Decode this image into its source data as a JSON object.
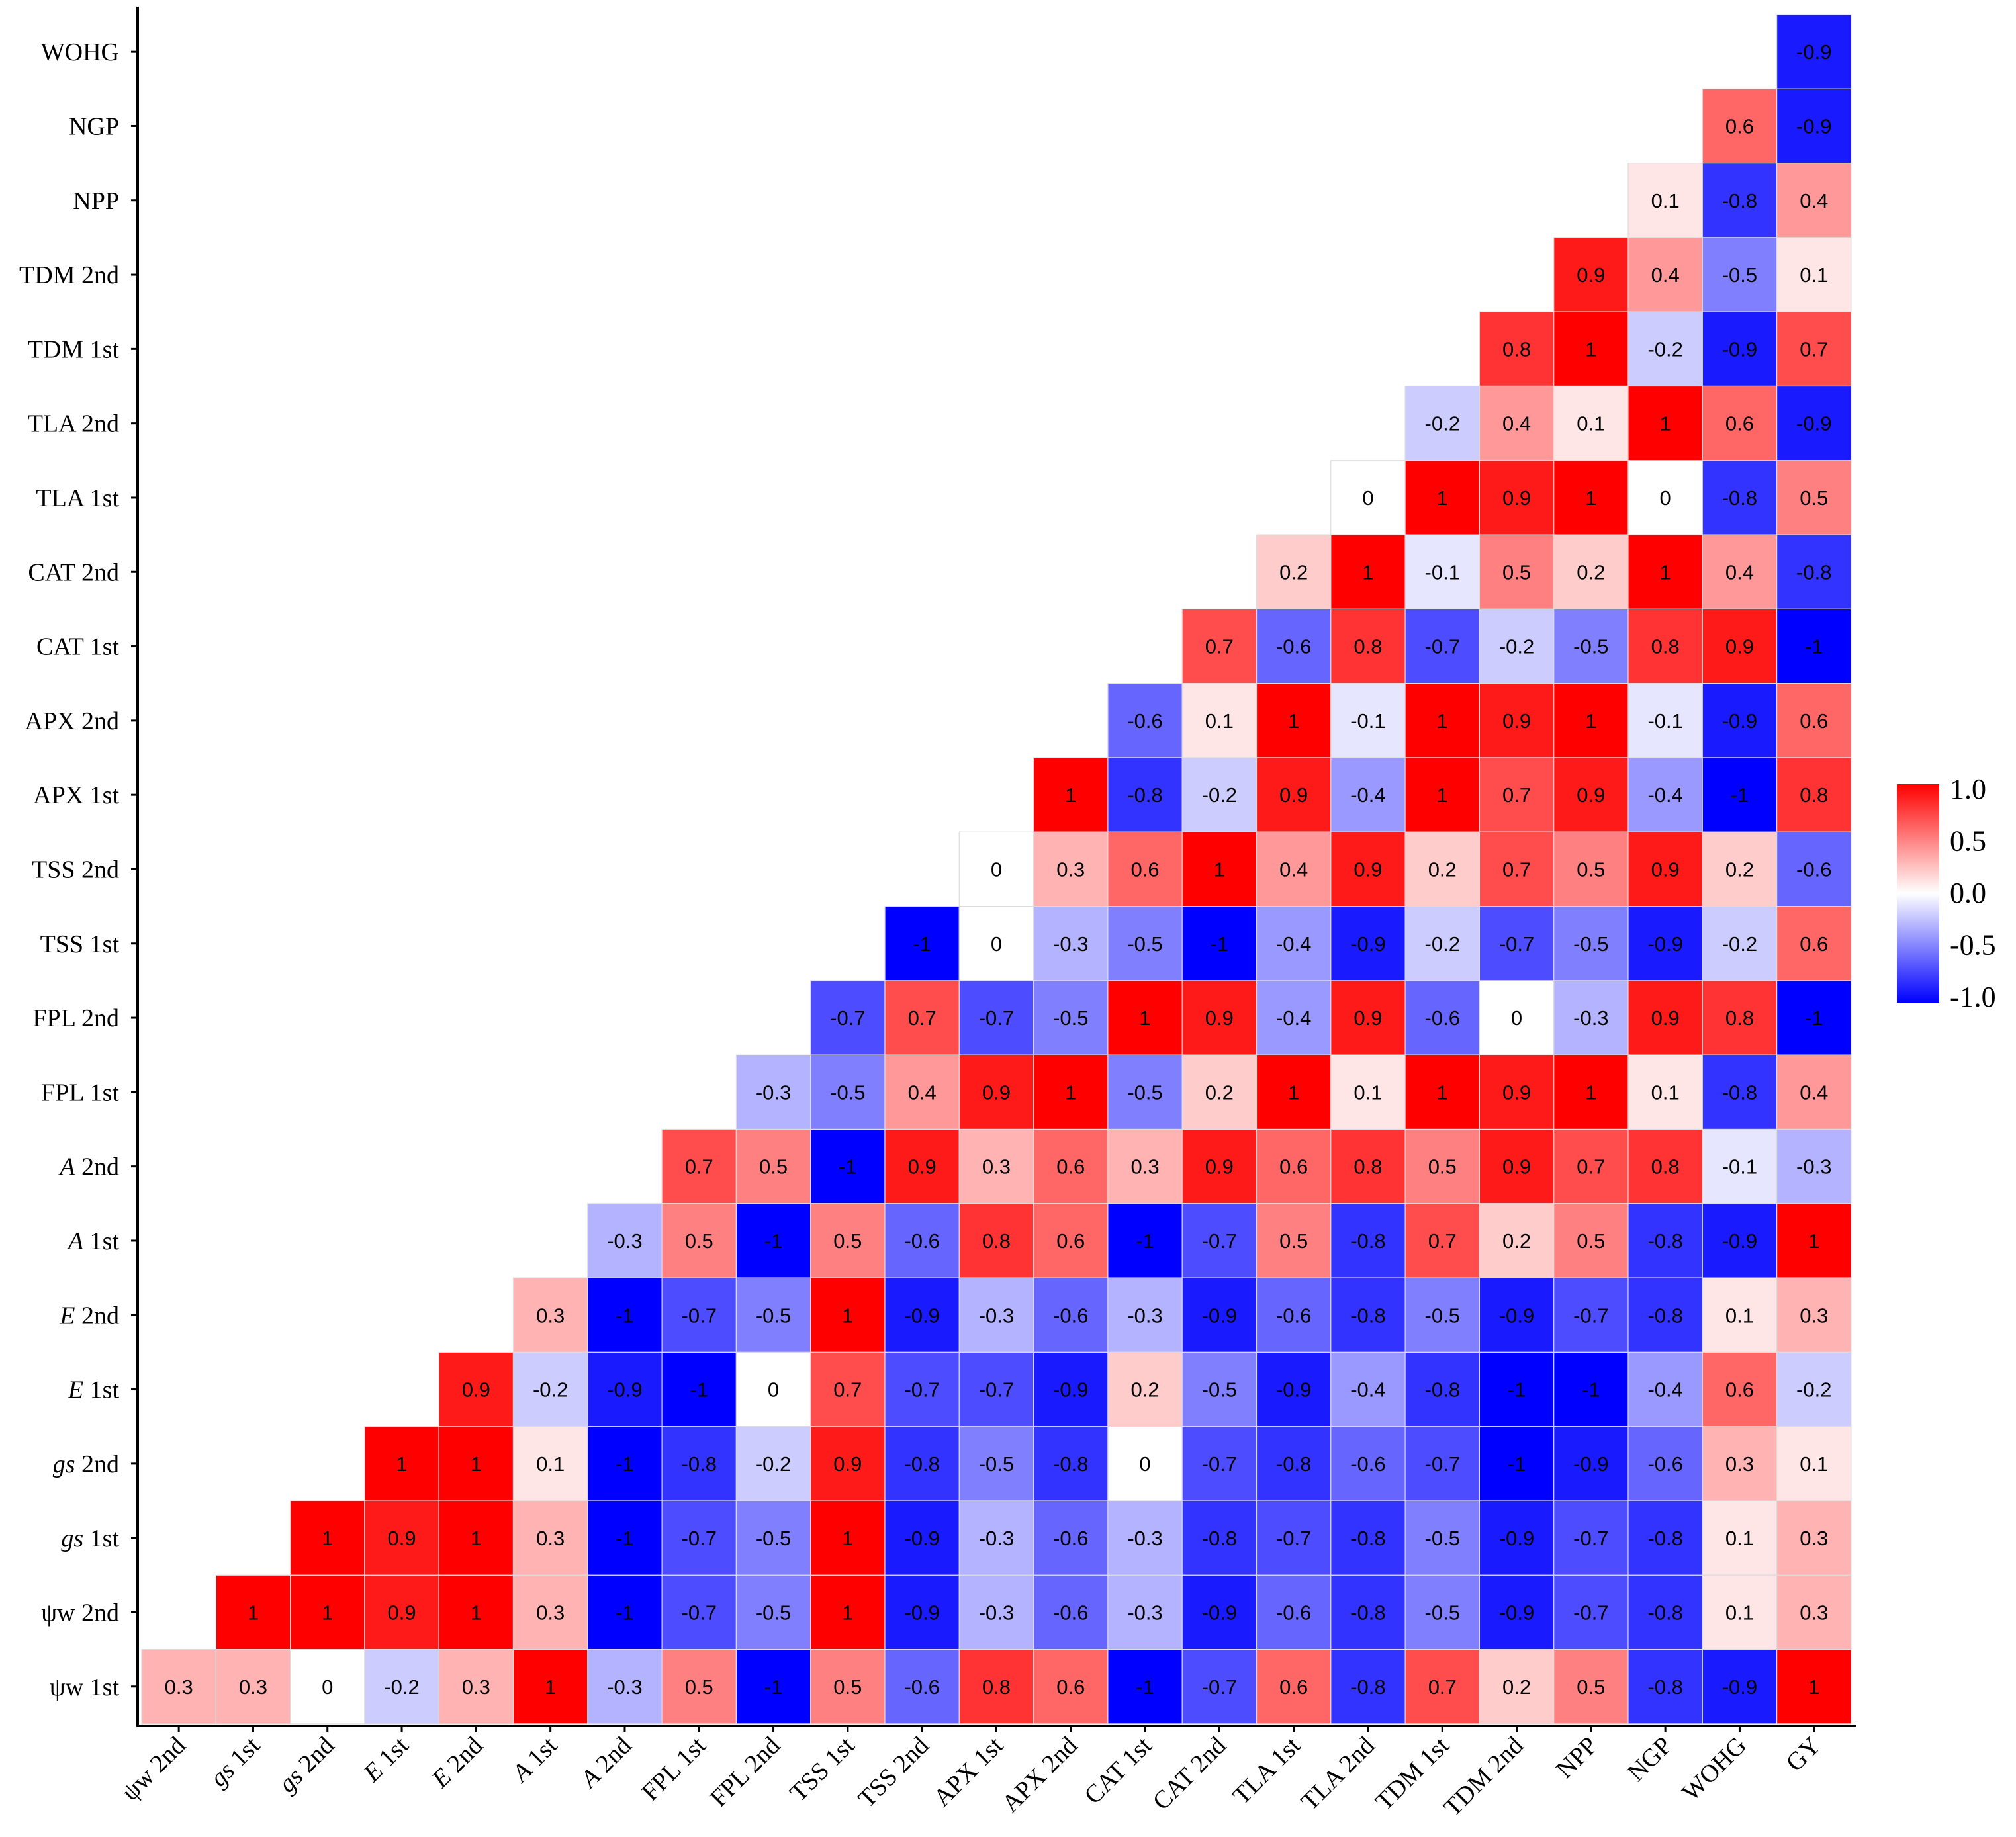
{
  "chart_data": {
    "type": "heatmap",
    "title": "",
    "xlabel": "",
    "ylabel": "",
    "x_labels": [
      {
        "parts": [
          {
            "t": "ψw",
            "i": false
          },
          {
            "t": " 2nd",
            "i": false
          }
        ]
      },
      {
        "parts": [
          {
            "t": "gs",
            "i": true
          },
          {
            "t": " 1st",
            "i": false
          }
        ]
      },
      {
        "parts": [
          {
            "t": "gs",
            "i": true
          },
          {
            "t": " 2nd",
            "i": false
          }
        ]
      },
      {
        "parts": [
          {
            "t": "E",
            "i": true
          },
          {
            "t": " 1st",
            "i": false
          }
        ]
      },
      {
        "parts": [
          {
            "t": "E",
            "i": true
          },
          {
            "t": " 2nd",
            "i": false
          }
        ]
      },
      {
        "parts": [
          {
            "t": "A",
            "i": true
          },
          {
            "t": " 1st",
            "i": false
          }
        ]
      },
      {
        "parts": [
          {
            "t": "A",
            "i": true
          },
          {
            "t": " 2nd",
            "i": false
          }
        ]
      },
      {
        "parts": [
          {
            "t": "FPL 1st",
            "i": false
          }
        ]
      },
      {
        "parts": [
          {
            "t": "FPL 2nd",
            "i": false
          }
        ]
      },
      {
        "parts": [
          {
            "t": "TSS 1st",
            "i": false
          }
        ]
      },
      {
        "parts": [
          {
            "t": "TSS 2nd",
            "i": false
          }
        ]
      },
      {
        "parts": [
          {
            "t": "APX 1st",
            "i": false
          }
        ]
      },
      {
        "parts": [
          {
            "t": "APX 2nd",
            "i": false
          }
        ]
      },
      {
        "parts": [
          {
            "t": "CAT 1st",
            "i": false
          }
        ]
      },
      {
        "parts": [
          {
            "t": "CAT 2nd",
            "i": false
          }
        ]
      },
      {
        "parts": [
          {
            "t": "TLA 1st",
            "i": false
          }
        ]
      },
      {
        "parts": [
          {
            "t": "TLA 2nd",
            "i": false
          }
        ]
      },
      {
        "parts": [
          {
            "t": "TDM 1st",
            "i": false
          }
        ]
      },
      {
        "parts": [
          {
            "t": "TDM 2nd",
            "i": false
          }
        ]
      },
      {
        "parts": [
          {
            "t": "NPP",
            "i": false
          }
        ]
      },
      {
        "parts": [
          {
            "t": "NGP",
            "i": false
          }
        ]
      },
      {
        "parts": [
          {
            "t": "WOHG",
            "i": false
          }
        ]
      },
      {
        "parts": [
          {
            "t": "GY",
            "i": false
          }
        ]
      }
    ],
    "y_labels": [
      {
        "parts": [
          {
            "t": "WOHG",
            "i": false
          }
        ]
      },
      {
        "parts": [
          {
            "t": "NGP",
            "i": false
          }
        ]
      },
      {
        "parts": [
          {
            "t": "NPP",
            "i": false
          }
        ]
      },
      {
        "parts": [
          {
            "t": "TDM 2nd",
            "i": false
          }
        ]
      },
      {
        "parts": [
          {
            "t": "TDM 1st",
            "i": false
          }
        ]
      },
      {
        "parts": [
          {
            "t": "TLA 2nd",
            "i": false
          }
        ]
      },
      {
        "parts": [
          {
            "t": "TLA 1st",
            "i": false
          }
        ]
      },
      {
        "parts": [
          {
            "t": "CAT 2nd",
            "i": false
          }
        ]
      },
      {
        "parts": [
          {
            "t": "CAT 1st",
            "i": false
          }
        ]
      },
      {
        "parts": [
          {
            "t": "APX 2nd",
            "i": false
          }
        ]
      },
      {
        "parts": [
          {
            "t": "APX 1st",
            "i": false
          }
        ]
      },
      {
        "parts": [
          {
            "t": "TSS 2nd",
            "i": false
          }
        ]
      },
      {
        "parts": [
          {
            "t": "TSS 1st",
            "i": false
          }
        ]
      },
      {
        "parts": [
          {
            "t": "FPL 2nd",
            "i": false
          }
        ]
      },
      {
        "parts": [
          {
            "t": "FPL 1st",
            "i": false
          }
        ]
      },
      {
        "parts": [
          {
            "t": "A",
            "i": true
          },
          {
            "t": "  2nd",
            "i": false
          }
        ]
      },
      {
        "parts": [
          {
            "t": "A",
            "i": true
          },
          {
            "t": " 1st",
            "i": false
          }
        ]
      },
      {
        "parts": [
          {
            "t": "E",
            "i": true
          },
          {
            "t": " 2nd",
            "i": false
          }
        ]
      },
      {
        "parts": [
          {
            "t": "E",
            "i": true
          },
          {
            "t": " 1st",
            "i": false
          }
        ]
      },
      {
        "parts": [
          {
            "t": "gs",
            "i": true
          },
          {
            "t": "  2nd",
            "i": false
          }
        ]
      },
      {
        "parts": [
          {
            "t": "gs",
            "i": true
          },
          {
            "t": " 1st",
            "i": false
          }
        ]
      },
      {
        "parts": [
          {
            "t": "ψw 2nd",
            "i": false
          }
        ]
      },
      {
        "parts": [
          {
            "t": "ψw 1st",
            "i": false
          }
        ]
      }
    ],
    "cells": [
      [
        -0.9
      ],
      [
        0.6,
        -0.9
      ],
      [
        0.1,
        -0.8,
        0.4
      ],
      [
        0.9,
        0.4,
        -0.5,
        0.1
      ],
      [
        0.8,
        1,
        -0.2,
        -0.9,
        0.7
      ],
      [
        -0.2,
        0.4,
        0.1,
        1,
        0.6,
        -0.9
      ],
      [
        0,
        1,
        0.9,
        1,
        0,
        -0.8,
        0.5
      ],
      [
        0.2,
        1,
        -0.1,
        0.5,
        0.2,
        1,
        0.4,
        -0.8
      ],
      [
        0.7,
        -0.6,
        0.8,
        -0.7,
        -0.2,
        -0.5,
        0.8,
        0.9,
        -1
      ],
      [
        -0.6,
        0.1,
        1,
        -0.1,
        1,
        0.9,
        1,
        -0.1,
        -0.9,
        0.6
      ],
      [
        1,
        -0.8,
        -0.2,
        0.9,
        -0.4,
        1,
        0.7,
        0.9,
        -0.4,
        -1,
        0.8
      ],
      [
        0,
        0.3,
        0.6,
        1,
        0.4,
        0.9,
        0.2,
        0.7,
        0.5,
        0.9,
        0.2,
        -0.6
      ],
      [
        -1,
        0,
        -0.3,
        -0.5,
        -1,
        -0.4,
        -0.9,
        -0.2,
        -0.7,
        -0.5,
        -0.9,
        -0.2,
        0.6
      ],
      [
        -0.7,
        0.7,
        -0.7,
        -0.5,
        1,
        0.9,
        -0.4,
        0.9,
        -0.6,
        0,
        -0.3,
        0.9,
        0.8,
        -1
      ],
      [
        -0.3,
        -0.5,
        0.4,
        0.9,
        1,
        -0.5,
        0.2,
        1,
        0.1,
        1,
        0.9,
        1,
        0.1,
        -0.8,
        0.4
      ],
      [
        0.7,
        0.5,
        -1,
        0.9,
        0.3,
        0.6,
        0.3,
        0.9,
        0.6,
        0.8,
        0.5,
        0.9,
        0.7,
        0.8,
        -0.1,
        -0.3
      ],
      [
        -0.3,
        0.5,
        -1,
        0.5,
        -0.6,
        0.8,
        0.6,
        -1,
        -0.7,
        0.5,
        -0.8,
        0.7,
        0.2,
        0.5,
        -0.8,
        -0.9,
        1
      ],
      [
        0.3,
        -1,
        -0.7,
        -0.5,
        1,
        -0.9,
        -0.3,
        -0.6,
        -0.3,
        -0.9,
        -0.6,
        -0.8,
        -0.5,
        -0.9,
        -0.7,
        -0.8,
        0.1,
        0.3
      ],
      [
        0.9,
        -0.2,
        -0.9,
        -1,
        0,
        0.7,
        -0.7,
        -0.7,
        -0.9,
        0.2,
        -0.5,
        -0.9,
        -0.4,
        -0.8,
        -1,
        -1,
        -0.4,
        0.6,
        -0.2
      ],
      [
        1,
        1,
        0.1,
        -1,
        -0.8,
        -0.2,
        0.9,
        -0.8,
        -0.5,
        -0.8,
        0,
        -0.7,
        -0.8,
        -0.6,
        -0.7,
        -1,
        -0.9,
        -0.6,
        0.3,
        0.1
      ],
      [
        1,
        0.9,
        1,
        0.3,
        -1,
        -0.7,
        -0.5,
        1,
        -0.9,
        -0.3,
        -0.6,
        -0.3,
        -0.8,
        -0.7,
        -0.8,
        -0.5,
        -0.9,
        -0.7,
        -0.8,
        0.1,
        0.3
      ],
      [
        1,
        1,
        0.9,
        1,
        0.3,
        -1,
        -0.7,
        -0.5,
        1,
        -0.9,
        -0.3,
        -0.6,
        -0.3,
        -0.9,
        -0.6,
        -0.8,
        -0.5,
        -0.9,
        -0.7,
        -0.8,
        0.1,
        0.3
      ],
      [
        0.3,
        0.3,
        0,
        -0.2,
        0.3,
        1,
        -0.3,
        0.5,
        -1,
        0.5,
        -0.6,
        0.8,
        0.6,
        -1,
        -0.7,
        0.6,
        -0.8,
        0.7,
        0.2,
        0.5,
        -0.8,
        -0.9,
        1
      ]
    ],
    "color_scale": {
      "min": -1.0,
      "max": 1.0,
      "low_color": "#0000FF",
      "mid_color": "#FFFFFF",
      "high_color": "#FF0000",
      "ticks": [
        "1.0",
        "0.5",
        "0.0",
        "-0.5",
        "-1.0"
      ]
    },
    "legend_position": "right",
    "grid": false
  }
}
